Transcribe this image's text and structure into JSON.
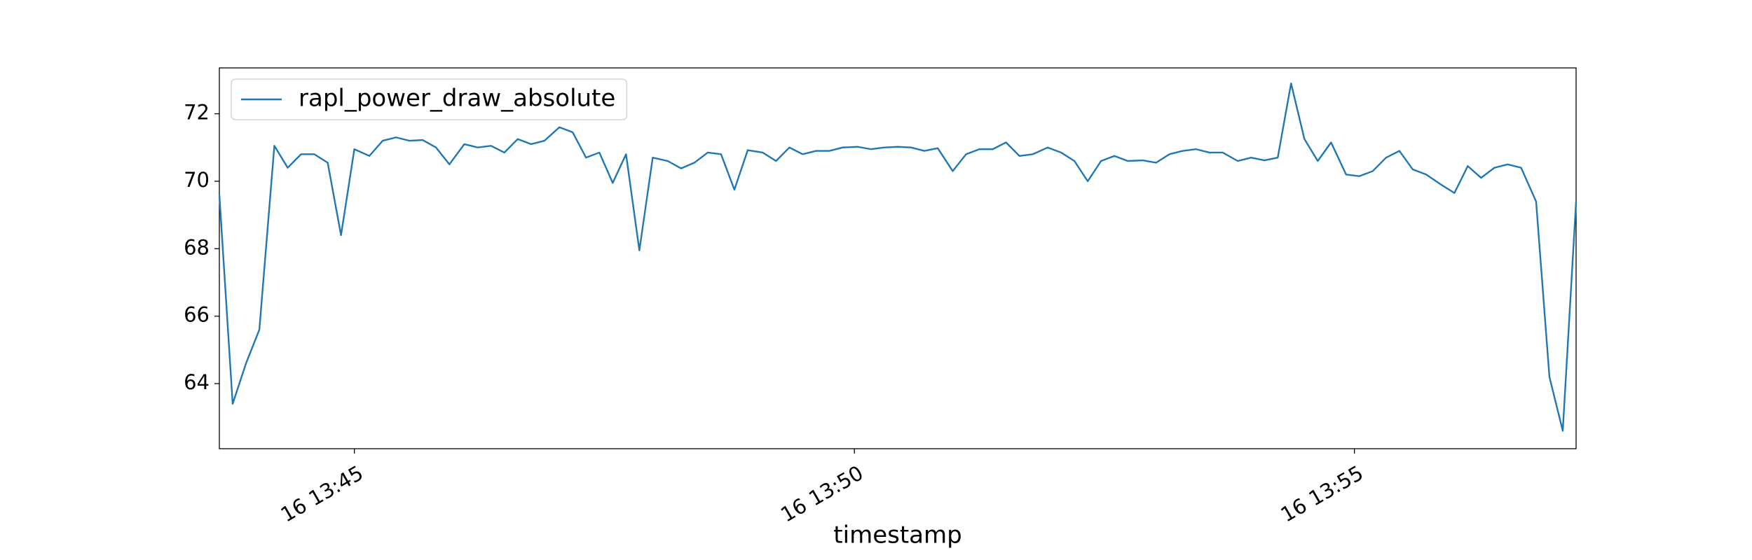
{
  "chart_data": {
    "type": "line",
    "xlabel": "timestamp",
    "x": [
      "16 13:43:39",
      "16 13:43:47",
      "16 13:43:55",
      "16 13:44:03",
      "16 13:44:12",
      "16 13:44:20",
      "16 13:44:28",
      "16 13:44:36",
      "16 13:44:44",
      "16 13:44:52",
      "16 13:45:00",
      "16 13:45:09",
      "16 13:45:17",
      "16 13:45:25",
      "16 13:45:33",
      "16 13:45:41",
      "16 13:45:49",
      "16 13:45:57",
      "16 13:46:06",
      "16 13:46:14",
      "16 13:46:22",
      "16 13:46:30",
      "16 13:46:38",
      "16 13:46:46",
      "16 13:46:54",
      "16 13:47:03",
      "16 13:47:11",
      "16 13:47:19",
      "16 13:47:27",
      "16 13:47:35",
      "16 13:47:43",
      "16 13:47:51",
      "16 13:47:59",
      "16 13:48:08",
      "16 13:48:16",
      "16 13:48:24",
      "16 13:48:32",
      "16 13:48:40",
      "16 13:48:48",
      "16 13:48:56",
      "16 13:49:05",
      "16 13:49:13",
      "16 13:49:21",
      "16 13:49:29",
      "16 13:49:37",
      "16 13:49:45",
      "16 13:49:53",
      "16 13:50:02",
      "16 13:50:10",
      "16 13:50:18",
      "16 13:50:26",
      "16 13:50:34",
      "16 13:50:42",
      "16 13:50:50",
      "16 13:50:59",
      "16 13:51:07",
      "16 13:51:15",
      "16 13:51:23",
      "16 13:51:31",
      "16 13:51:39",
      "16 13:51:47",
      "16 13:51:56",
      "16 13:52:04",
      "16 13:52:12",
      "16 13:52:20",
      "16 13:52:28",
      "16 13:52:36",
      "16 13:52:44",
      "16 13:52:53",
      "16 13:53:01",
      "16 13:53:09",
      "16 13:53:17",
      "16 13:53:25",
      "16 13:53:33",
      "16 13:53:41",
      "16 13:53:50",
      "16 13:53:58",
      "16 13:54:06",
      "16 13:54:14",
      "16 13:54:22",
      "16 13:54:30",
      "16 13:54:38",
      "16 13:54:46",
      "16 13:54:55",
      "16 13:55:03",
      "16 13:55:11",
      "16 13:55:19",
      "16 13:55:27",
      "16 13:55:35",
      "16 13:55:43",
      "16 13:55:52",
      "16 13:56:00",
      "16 13:56:08",
      "16 13:56:16",
      "16 13:56:24",
      "16 13:56:32",
      "16 13:56:40",
      "16 13:56:49",
      "16 13:56:57",
      "16 13:57:05",
      "16 13:57:13"
    ],
    "series": [
      {
        "name": "rapl_power_draw_absolute",
        "color": "#1f77b4",
        "values": [
          69.6,
          63.4,
          64.6,
          65.6,
          71.05,
          70.4,
          70.8,
          70.8,
          70.55,
          68.4,
          70.95,
          70.75,
          71.2,
          71.3,
          71.2,
          71.22,
          71.0,
          70.5,
          71.1,
          71.0,
          71.05,
          70.85,
          71.25,
          71.1,
          71.2,
          71.6,
          71.45,
          70.7,
          70.85,
          69.95,
          70.8,
          67.95,
          70.7,
          70.6,
          70.38,
          70.55,
          70.85,
          70.8,
          69.75,
          70.92,
          70.85,
          70.6,
          71.0,
          70.8,
          70.9,
          70.9,
          71.0,
          71.02,
          70.95,
          71.0,
          71.02,
          71.0,
          70.9,
          70.98,
          70.3,
          70.8,
          70.95,
          70.95,
          71.15,
          70.75,
          70.8,
          71.0,
          70.85,
          70.6,
          70.0,
          70.6,
          70.75,
          70.6,
          70.62,
          70.55,
          70.8,
          70.9,
          70.95,
          70.85,
          70.85,
          70.6,
          70.7,
          70.62,
          70.7,
          72.9,
          71.25,
          70.6,
          71.15,
          70.2,
          70.15,
          70.3,
          70.7,
          70.9,
          70.35,
          70.2,
          69.9,
          69.65,
          70.45,
          70.1,
          70.4,
          70.5,
          70.4,
          69.4,
          64.2,
          62.6,
          69.4
        ]
      }
    ],
    "xlim": [
      "16 13:43:39",
      "16 13:57:13"
    ],
    "xticks": [
      "16 13:45",
      "16 13:50",
      "16 13:55"
    ],
    "ylim": [
      62.07,
      73.36
    ],
    "yticks": [
      64,
      66,
      68,
      70,
      72
    ],
    "legend": "upper left"
  }
}
